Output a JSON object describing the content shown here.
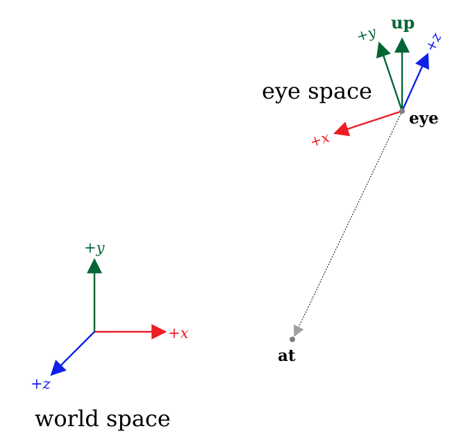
{
  "colors": {
    "x_axis": "#ee1c25",
    "y_axis": "#006633",
    "z_axis": "#1020e8",
    "up": "#006633",
    "ink": "#000000",
    "point": "#808080"
  },
  "world": {
    "title": "world space",
    "x_label": "+x",
    "y_label": "+y",
    "z_label": "+z"
  },
  "eye_space": {
    "title": "eye space",
    "x_label": "+x",
    "y_label": "+y",
    "z_label": "+z",
    "up_label": "up"
  },
  "eye": {
    "label": "eye"
  },
  "at": {
    "label": "at"
  }
}
